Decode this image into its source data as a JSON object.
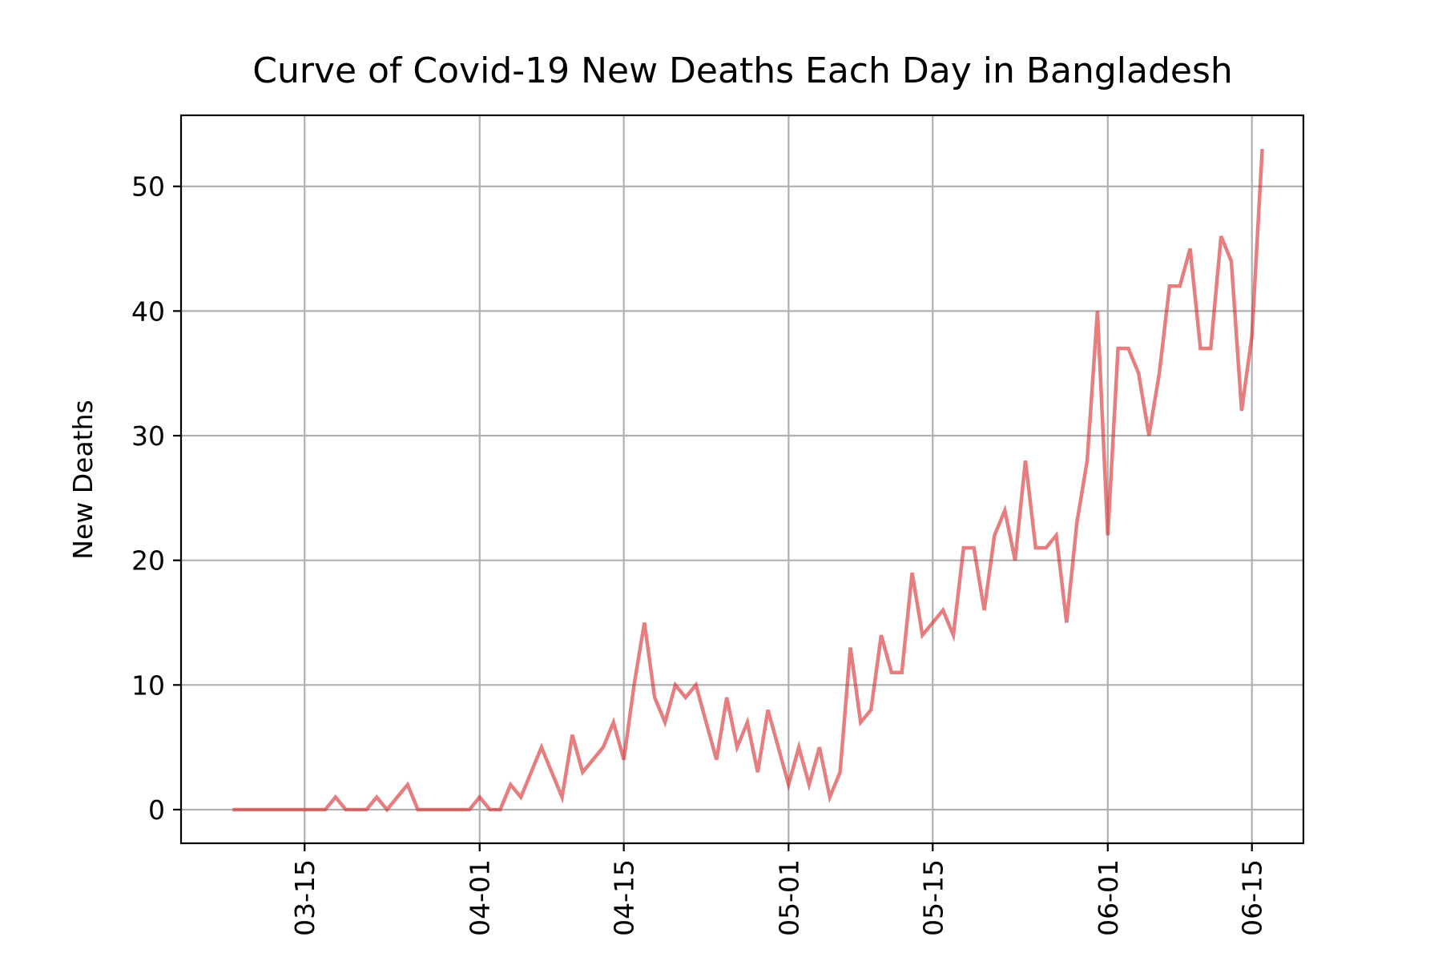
{
  "chart_data": {
    "type": "line",
    "title": "Curve of Covid-19 New Deaths Each Day in Bangladesh",
    "xlabel": "",
    "ylabel": "New Deaths",
    "x_tick_labels": [
      "03-15",
      "04-01",
      "04-15",
      "05-01",
      "05-15",
      "06-01",
      "06-15"
    ],
    "x_tick_dates": [
      "2020-03-15",
      "2020-04-01",
      "2020-04-15",
      "2020-05-01",
      "2020-05-15",
      "2020-06-01",
      "2020-06-15"
    ],
    "y_ticks": [
      0,
      10,
      20,
      30,
      40,
      50
    ],
    "xlim": [
      "2020-03-03",
      "2020-06-20"
    ],
    "ylim": [
      -2.7,
      55.7
    ],
    "grid": true,
    "line_color": "#d62728",
    "series": [
      {
        "dates": [
          "2020-03-08",
          "2020-03-09",
          "2020-03-10",
          "2020-03-11",
          "2020-03-12",
          "2020-03-13",
          "2020-03-14",
          "2020-03-15",
          "2020-03-16",
          "2020-03-17",
          "2020-03-18",
          "2020-03-19",
          "2020-03-20",
          "2020-03-21",
          "2020-03-22",
          "2020-03-23",
          "2020-03-24",
          "2020-03-25",
          "2020-03-26",
          "2020-03-27",
          "2020-03-28",
          "2020-03-29",
          "2020-03-30",
          "2020-03-31",
          "2020-04-01",
          "2020-04-02",
          "2020-04-03",
          "2020-04-04",
          "2020-04-05",
          "2020-04-06",
          "2020-04-07",
          "2020-04-08",
          "2020-04-09",
          "2020-04-10",
          "2020-04-11",
          "2020-04-12",
          "2020-04-13",
          "2020-04-14",
          "2020-04-15",
          "2020-04-16",
          "2020-04-17",
          "2020-04-18",
          "2020-04-19",
          "2020-04-20",
          "2020-04-21",
          "2020-04-22",
          "2020-04-23",
          "2020-04-24",
          "2020-04-25",
          "2020-04-26",
          "2020-04-27",
          "2020-04-28",
          "2020-04-29",
          "2020-04-30",
          "2020-05-01",
          "2020-05-02",
          "2020-05-03",
          "2020-05-04",
          "2020-05-05",
          "2020-05-06",
          "2020-05-07",
          "2020-05-08",
          "2020-05-09",
          "2020-05-10",
          "2020-05-11",
          "2020-05-12",
          "2020-05-13",
          "2020-05-14",
          "2020-05-15",
          "2020-05-16",
          "2020-05-17",
          "2020-05-18",
          "2020-05-19",
          "2020-05-20",
          "2020-05-21",
          "2020-05-22",
          "2020-05-23",
          "2020-05-24",
          "2020-05-25",
          "2020-05-26",
          "2020-05-27",
          "2020-05-28",
          "2020-05-29",
          "2020-05-30",
          "2020-05-31",
          "2020-06-01",
          "2020-06-02",
          "2020-06-03",
          "2020-06-04",
          "2020-06-05",
          "2020-06-06",
          "2020-06-07",
          "2020-06-08",
          "2020-06-09",
          "2020-06-10",
          "2020-06-11",
          "2020-06-12",
          "2020-06-13",
          "2020-06-14",
          "2020-06-15",
          "2020-06-16"
        ],
        "values": [
          0,
          0,
          0,
          0,
          0,
          0,
          0,
          0,
          0,
          0,
          1,
          0,
          0,
          0,
          1,
          0,
          1,
          2,
          0,
          0,
          0,
          0,
          0,
          0,
          1,
          0,
          0,
          2,
          1,
          3,
          5,
          3,
          1,
          6,
          3,
          4,
          5,
          7,
          4,
          10,
          15,
          9,
          7,
          10,
          9,
          10,
          7,
          4,
          9,
          5,
          7,
          3,
          8,
          5,
          2,
          5,
          2,
          5,
          1,
          3,
          13,
          7,
          8,
          14,
          11,
          11,
          19,
          14,
          15,
          16,
          14,
          21,
          21,
          16,
          22,
          24,
          20,
          28,
          21,
          21,
          22,
          15,
          23,
          28,
          40,
          22,
          37,
          37,
          35,
          30,
          35,
          42,
          42,
          45,
          37,
          37,
          46,
          44,
          32,
          38,
          53
        ]
      }
    ]
  }
}
